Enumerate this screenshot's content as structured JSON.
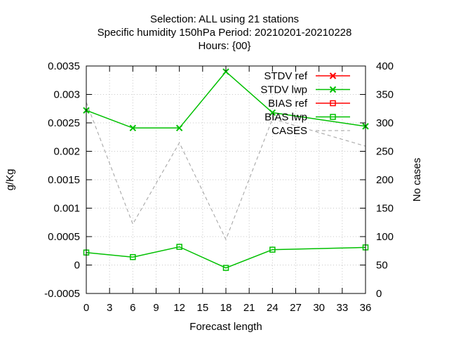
{
  "chart_data": {
    "type": "line",
    "title_lines": [
      "Selection: ALL using    21 stations",
      "Specific humidity 150hPa   Period: 20210201-20210228",
      "Hours: {00}"
    ],
    "xlabel": "Forecast length",
    "ylabel": "g/Kg",
    "y2label": "No cases",
    "x_ticks": [
      0,
      3,
      6,
      9,
      12,
      15,
      18,
      21,
      24,
      27,
      30,
      33,
      36
    ],
    "y_ticks": [
      "-0.0005",
      "0",
      "0.0005",
      "0.001",
      "0.0015",
      "0.002",
      "0.0025",
      "0.003",
      "0.0035"
    ],
    "y_tick_values": [
      -0.0005,
      0,
      0.0005,
      0.001,
      0.0015,
      0.002,
      0.0025,
      0.003,
      0.0035
    ],
    "y2_ticks": [
      "0",
      "50",
      "100",
      "150",
      "200",
      "250",
      "300",
      "350",
      "400"
    ],
    "y2_tick_values": [
      0,
      50,
      100,
      150,
      200,
      250,
      300,
      350,
      400
    ],
    "xlim": [
      0,
      36
    ],
    "ylim": [
      -0.0005,
      0.0035
    ],
    "y2lim": [
      0,
      400
    ],
    "grid": true,
    "legend_position": "top-right",
    "series": [
      {
        "name": "STDV ref",
        "axis": "y",
        "color": "#ff0000",
        "marker": "x",
        "dash": false,
        "x": [],
        "values": []
      },
      {
        "name": "STDV lwp",
        "axis": "y",
        "color": "#00c000",
        "marker": "x",
        "dash": false,
        "x": [
          0,
          6,
          12,
          18,
          24,
          36
        ],
        "values": [
          0.00272,
          0.00241,
          0.00241,
          0.0034,
          0.00268,
          0.00244
        ]
      },
      {
        "name": "BIAS ref",
        "axis": "y",
        "color": "#ff0000",
        "marker": "square",
        "dash": false,
        "x": [],
        "values": []
      },
      {
        "name": "BIAS lwp",
        "axis": "y",
        "color": "#00c000",
        "marker": "square",
        "dash": false,
        "x": [
          0,
          6,
          12,
          18,
          24,
          36
        ],
        "values": [
          0.00022,
          0.00014,
          0.00032,
          -5e-05,
          0.00027,
          0.00031
        ]
      },
      {
        "name": "CASES",
        "axis": "y2",
        "color": "#a0a0a0",
        "marker": "none",
        "dash": true,
        "x": [
          0,
          6,
          12,
          18,
          24,
          36
        ],
        "values": [
          336,
          122,
          265,
          95,
          307,
          259
        ]
      }
    ]
  }
}
